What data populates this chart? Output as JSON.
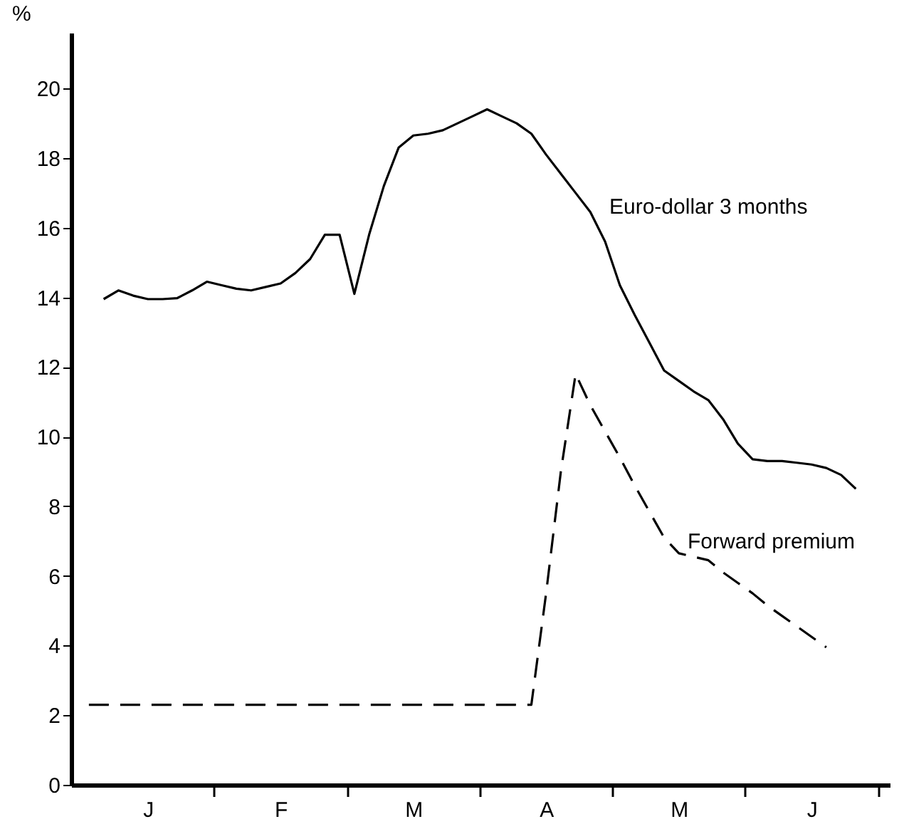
{
  "chart_data": {
    "type": "line",
    "ylabel": "%",
    "categories": [
      null,
      null,
      null,
      null,
      "J",
      null,
      null,
      null,
      null,
      null,
      null,
      null,
      null,
      "F",
      null,
      null,
      null,
      null,
      null,
      null,
      null,
      null,
      "M",
      null,
      null,
      null,
      null,
      null,
      null,
      null,
      null,
      "A",
      null,
      null,
      null,
      null,
      null,
      null,
      null,
      null,
      "M",
      null,
      null,
      null,
      null,
      null,
      null,
      null,
      null,
      "J",
      null,
      null,
      null,
      null
    ],
    "series": [
      {
        "name": "Euro-dollar 3 months",
        "color": "#000000",
        "line_style": "solid",
        "values": [
          null,
          13.95,
          14.2,
          14.05,
          13.95,
          13.95,
          13.98,
          14.2,
          14.45,
          14.35,
          14.25,
          14.2,
          14.3,
          14.4,
          14.7,
          15.1,
          15.8,
          15.8,
          14.1,
          15.8,
          17.2,
          18.3,
          18.65,
          18.7,
          18.8,
          19.0,
          19.2,
          19.4,
          19.2,
          19.0,
          18.7,
          18.1,
          17.55,
          17.0,
          16.45,
          15.6,
          14.35,
          13.5,
          12.7,
          11.9,
          11.6,
          11.3,
          11.05,
          10.5,
          9.8,
          9.35,
          9.3,
          9.3,
          9.25,
          9.2,
          9.1,
          8.9,
          8.5,
          null
        ]
      },
      {
        "name": "Forward premium",
        "color": "#000000",
        "line_style": "dashed",
        "values": [
          2.3,
          2.3,
          2.3,
          2.3,
          2.3,
          2.3,
          2.3,
          2.3,
          2.3,
          2.3,
          2.3,
          2.3,
          2.3,
          2.3,
          2.3,
          2.3,
          2.3,
          2.3,
          2.3,
          2.3,
          2.3,
          2.3,
          2.3,
          2.3,
          2.3,
          2.3,
          2.3,
          2.3,
          2.3,
          2.3,
          2.3,
          5.5,
          9.0,
          11.8,
          10.9,
          10.15,
          9.4,
          8.6,
          7.85,
          7.1,
          6.65,
          6.55,
          6.45,
          6.1,
          5.8,
          5.5,
          5.15,
          4.85,
          4.55,
          4.25,
          3.95,
          null,
          null,
          null
        ]
      }
    ],
    "ylim": [
      0,
      21.6
    ],
    "yticks": [
      0,
      2,
      4,
      6,
      8,
      10,
      12,
      14,
      16,
      18,
      20
    ],
    "grid": false,
    "legend": false,
    "marker": "none"
  }
}
